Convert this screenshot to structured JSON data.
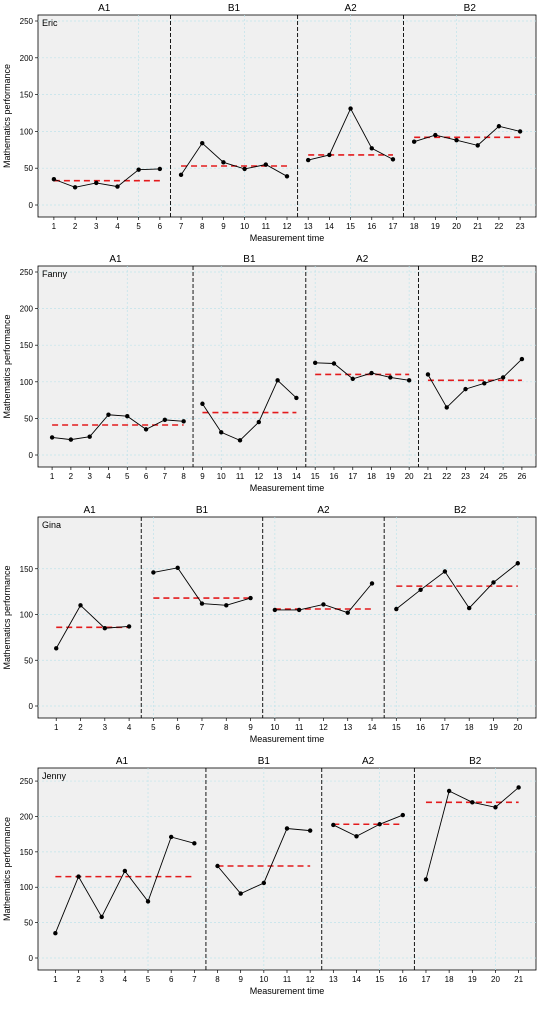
{
  "colors": {
    "panel_bg": "#f0f0f0",
    "grid": "#bfe3ea",
    "line": "#000000",
    "mean_line": "#e31a1c",
    "phase_divider": "#000000"
  },
  "chart_data": [
    {
      "type": "line",
      "student": "Eric",
      "ylabel": "Mathematics performance",
      "xlabel": "Measurement time",
      "ylim": [
        0,
        250
      ],
      "yticks": [
        0,
        50,
        100,
        150,
        200,
        250
      ],
      "grid": true,
      "phases": [
        {
          "label": "A1",
          "x": [
            1,
            2,
            3,
            4,
            5,
            6
          ],
          "values": [
            35,
            24,
            30,
            25,
            48,
            49
          ],
          "mean": 33
        },
        {
          "label": "B1",
          "x": [
            7,
            8,
            9,
            10,
            11,
            12
          ],
          "values": [
            41,
            84,
            58,
            49,
            55,
            39
          ],
          "mean": 53
        },
        {
          "label": "A2",
          "x": [
            13,
            14,
            15,
            16,
            17
          ],
          "values": [
            61,
            68,
            131,
            77,
            62
          ],
          "mean": 68
        },
        {
          "label": "B2",
          "x": [
            18,
            19,
            20,
            21,
            22,
            23
          ],
          "values": [
            86,
            95,
            88,
            81,
            107,
            100
          ],
          "mean": 92
        }
      ]
    },
    {
      "type": "line",
      "student": "Fanny",
      "ylabel": "Mathematics performance",
      "xlabel": "Measurement time",
      "ylim": [
        0,
        250
      ],
      "yticks": [
        0,
        50,
        100,
        150,
        200,
        250
      ],
      "grid": true,
      "phases": [
        {
          "label": "A1",
          "x": [
            1,
            2,
            3,
            4,
            5,
            6,
            7,
            8
          ],
          "values": [
            24,
            21,
            25,
            55,
            53,
            35,
            48,
            46
          ],
          "mean": 41
        },
        {
          "label": "B1",
          "x": [
            9,
            10,
            11,
            12,
            13,
            14
          ],
          "values": [
            70,
            31,
            20,
            45,
            102,
            78
          ],
          "mean": 58
        },
        {
          "label": "A2",
          "x": [
            15,
            16,
            17,
            18,
            19,
            20
          ],
          "values": [
            126,
            125,
            104,
            112,
            106,
            102
          ],
          "mean": 110
        },
        {
          "label": "B2",
          "x": [
            21,
            22,
            23,
            24,
            25,
            26
          ],
          "values": [
            110,
            65,
            90,
            98,
            106,
            131
          ],
          "mean": 102
        }
      ]
    },
    {
      "type": "line",
      "student": "Gina",
      "ylabel": "Mathematics performance",
      "xlabel": "Measurement time",
      "ylim": [
        0,
        200
      ],
      "yticks": [
        0,
        50,
        100,
        150
      ],
      "grid": true,
      "phases": [
        {
          "label": "A1",
          "x": [
            1,
            2,
            3,
            4
          ],
          "values": [
            63,
            110,
            85,
            87
          ],
          "mean": 86
        },
        {
          "label": "B1",
          "x": [
            5,
            6,
            7,
            8,
            9
          ],
          "values": [
            146,
            151,
            112,
            110,
            118
          ],
          "mean": 118
        },
        {
          "label": "A2",
          "x": [
            10,
            11,
            12,
            13,
            14
          ],
          "values": [
            105,
            105,
            111,
            102,
            134
          ],
          "mean": 106
        },
        {
          "label": "B2",
          "x": [
            15,
            16,
            17,
            18,
            19,
            20
          ],
          "values": [
            106,
            127,
            147,
            107,
            135,
            156
          ],
          "mean": 131
        }
      ]
    },
    {
      "type": "line",
      "student": "Jenny",
      "ylabel": "Mathematics performance",
      "xlabel": "Measurement time",
      "ylim": [
        0,
        260
      ],
      "yticks": [
        0,
        50,
        100,
        150,
        200,
        250
      ],
      "grid": true,
      "phases": [
        {
          "label": "A1",
          "x": [
            1,
            2,
            3,
            4,
            5,
            6,
            7
          ],
          "values": [
            35,
            115,
            58,
            123,
            80,
            171,
            162
          ],
          "mean": 115
        },
        {
          "label": "B1",
          "x": [
            8,
            9,
            10,
            11,
            12
          ],
          "values": [
            130,
            91,
            106,
            183,
            180
          ],
          "mean": 130
        },
        {
          "label": "A2",
          "x": [
            13,
            14,
            15,
            16
          ],
          "values": [
            188,
            172,
            189,
            202
          ],
          "mean": 189
        },
        {
          "label": "B2",
          "x": [
            17,
            18,
            19,
            20,
            21
          ],
          "values": [
            111,
            236,
            220,
            213,
            241
          ],
          "mean": 220
        }
      ]
    }
  ]
}
